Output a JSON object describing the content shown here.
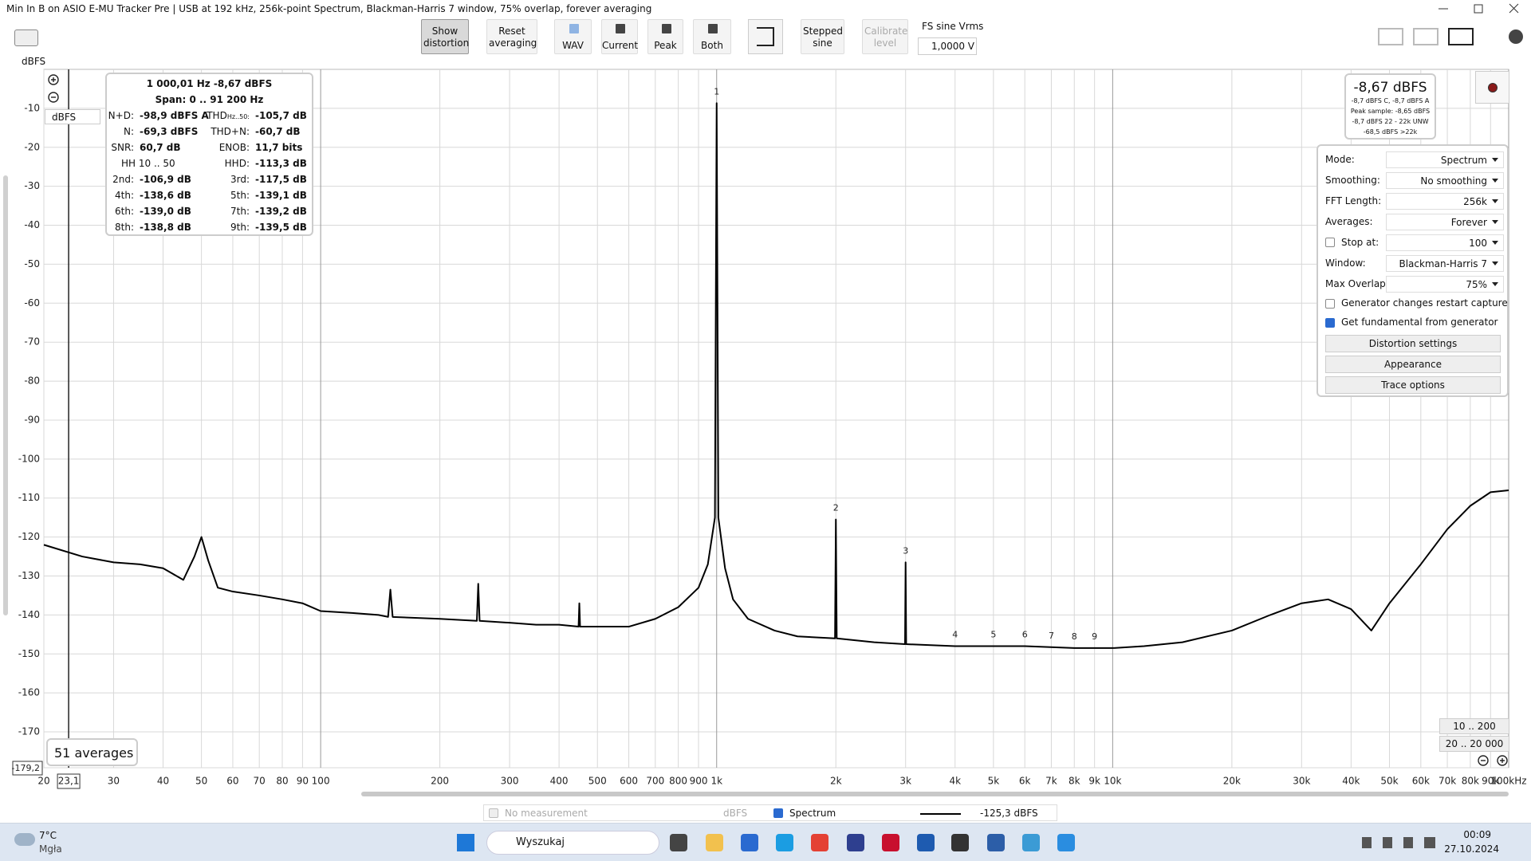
{
  "window": {
    "title": "Min In B on ASIO E-MU Tracker Pre | USB at 192 kHz, 256k-point Spectrum, Blackman-Harris 7 window, 75% overlap, forever averaging"
  },
  "toolbar": {
    "buttons": [
      "Show distortion",
      "Reset averaging",
      "WAV",
      "Current",
      "Peak",
      "Both",
      "Stepped sine",
      "Calibrate level"
    ],
    "fs_label": "FS sine Vrms",
    "fs_value": "1,0000 V"
  },
  "y_unit": "dBFS",
  "y_unit_select": "dBFS",
  "chart_data": {
    "type": "line",
    "x": [
      20,
      25,
      30,
      35,
      40,
      45,
      48,
      50,
      52,
      55,
      60,
      70,
      80,
      90,
      100,
      120,
      140,
      148,
      150,
      152,
      200,
      248,
      250,
      252,
      300,
      350,
      400,
      448,
      450,
      452,
      500,
      600,
      700,
      800,
      900,
      950,
      990,
      1000,
      1010,
      1050,
      1100,
      1200,
      1400,
      1600,
      1990,
      2000,
      2010,
      2500,
      2990,
      3000,
      3010,
      4000,
      5000,
      6000,
      8000,
      10000,
      12000,
      15000,
      20000,
      25000,
      30000,
      35000,
      40000,
      45000,
      50000,
      60000,
      70000,
      80000,
      90000,
      100000
    ],
    "series": [
      {
        "name": "Spectrum",
        "color": "#000000",
        "values": [
          -122,
          -125,
          -126.5,
          -127,
          -128,
          -131,
          -125,
          -120,
          -126,
          -133,
          -134,
          -135,
          -136,
          -137,
          -139,
          -139.5,
          -140,
          -140.5,
          -133.5,
          -140.5,
          -141,
          -141.5,
          -132,
          -141.5,
          -142,
          -142.5,
          -142.5,
          -143,
          -137,
          -143,
          -143,
          -143,
          -141,
          -138,
          -133,
          -127,
          -115,
          -8.67,
          -115,
          -128,
          -136,
          -141,
          -144,
          -145.5,
          -146,
          -115.5,
          -146,
          -147,
          -147.5,
          -126.5,
          -147.5,
          -148,
          -148,
          -148,
          -148.5,
          -148.5,
          -148,
          -147,
          -144,
          -140,
          -137,
          -136,
          -138.5,
          -144,
          -137,
          -127,
          -118,
          -112,
          -108.5,
          -108
        ]
      }
    ],
    "xlim": [
      20,
      100000
    ],
    "ylim": [
      -179.2,
      0
    ],
    "x_log": true,
    "grid": true,
    "xticks": [
      20,
      30,
      40,
      50,
      60,
      70,
      80,
      90,
      100,
      200,
      300,
      400,
      500,
      600,
      700,
      800,
      900,
      {
        "value": 1000,
        "label": "1k"
      },
      {
        "value": 2000,
        "label": "2k"
      },
      {
        "value": 3000,
        "label": "3k"
      },
      {
        "value": 4000,
        "label": "4k"
      },
      {
        "value": 5000,
        "label": "5k"
      },
      {
        "value": 6000,
        "label": "6k"
      },
      {
        "value": 7000,
        "label": "7k"
      },
      {
        "value": 8000,
        "label": "8k"
      },
      {
        "value": 9000,
        "label": "9k"
      },
      {
        "value": 10000,
        "label": "10k"
      },
      {
        "value": 20000,
        "label": "20k"
      },
      {
        "value": 30000,
        "label": "30k"
      },
      {
        "value": 40000,
        "label": "40k"
      },
      {
        "value": 50000,
        "label": "50k"
      },
      {
        "value": 60000,
        "label": "60k"
      },
      {
        "value": 70000,
        "label": "70k"
      },
      {
        "value": 80000,
        "label": "80k"
      },
      {
        "value": 90000,
        "label": "90k"
      },
      {
        "value": 100000,
        "label": "100kHz"
      }
    ],
    "yticks": [
      {
        "value": -179.2,
        "label": "-179,2"
      },
      -170,
      -160,
      -150,
      -140,
      -130,
      -120,
      -110,
      -100,
      -90,
      -80,
      -70,
      -60,
      -50,
      -40,
      -30,
      -20,
      -10
    ],
    "cursor_x": {
      "value": 23.1,
      "label": "23,1"
    },
    "harmonics": {
      "labels": [
        "1",
        "2",
        "3",
        "4",
        "5",
        "6",
        "7",
        "8",
        "9"
      ],
      "x": [
        1000,
        2000,
        3000,
        4000,
        5000,
        6000,
        7000,
        8000,
        9000
      ]
    }
  },
  "distortion": {
    "header": "1 000,01 Hz  -8,67 dBFS",
    "span": "Span: 0 .. 91 200 Hz",
    "rows": [
      [
        {
          "label": "N+D:",
          "value": "-98,9 dBFS A"
        },
        {
          "label": "THD",
          "sub": "Hz..50:",
          "value": "-105,7 dB"
        }
      ],
      [
        {
          "label": "N:",
          "value": "-69,3 dBFS"
        },
        {
          "label": "THD+N:",
          "value": "-60,7 dB"
        }
      ],
      [
        {
          "label": "SNR:",
          "value": "60,7 dB"
        },
        {
          "label": "ENOB:",
          "value": "11,7 bits"
        }
      ],
      [
        {
          "label": "HH 10 .. 50"
        },
        {
          "label": "HHD:",
          "value": "-113,3 dB"
        }
      ],
      [
        {
          "label": "2nd:",
          "value": "-106,9 dB"
        },
        {
          "label": "3rd:",
          "value": "-117,5 dB"
        }
      ],
      [
        {
          "label": "4th:",
          "value": "-138,6 dB"
        },
        {
          "label": "5th:",
          "value": "-139,1 dB"
        }
      ],
      [
        {
          "label": "6th:",
          "value": "-139,0 dB"
        },
        {
          "label": "7th:",
          "value": "-139,2 dB"
        }
      ],
      [
        {
          "label": "8th:",
          "value": "-138,8 dB"
        },
        {
          "label": "9th:",
          "value": "-139,5 dB"
        }
      ]
    ]
  },
  "level": {
    "main": "-8,67 dBFS",
    "lines": [
      "-8,7 dBFS C, -8,7 dBFS A",
      "Peak sample: -8,65 dBFS",
      "-8,7 dBFS 22 - 22k UNW",
      "-68,5 dBFS >22k"
    ]
  },
  "settings": {
    "rows": [
      {
        "label": "Mode:",
        "value": "Spectrum"
      },
      {
        "label": "Smoothing:",
        "value": "No smoothing"
      },
      {
        "label": "FFT Length:",
        "value": "256k"
      },
      {
        "label": "Averages:",
        "value": "Forever"
      },
      {
        "label": "Stop at:",
        "value": "100",
        "checkbox": false,
        "spinner": true
      },
      {
        "label": "Window:",
        "value": "Blackman-Harris 7"
      },
      {
        "label": "Max Overlap:",
        "value": "75%"
      }
    ],
    "checks": [
      {
        "label": "Generator changes restart capture",
        "checked": false
      },
      {
        "label": "Get fundamental from generator",
        "checked": true
      }
    ],
    "buttons": [
      "Distortion settings",
      "Appearance",
      "Trace options"
    ]
  },
  "averages": "51 averages",
  "ranges": [
    "10 .. 200",
    "20 .. 20 000"
  ],
  "footer": {
    "no_measurement": "No measurement",
    "unit": "dBFS",
    "cursor_value": "-125,3 dBFS"
  },
  "taskbar": {
    "temp": "7°C",
    "weather": "Mgła",
    "search": "Wyszukaj",
    "time": "00:09",
    "date": "27.10.2024"
  }
}
